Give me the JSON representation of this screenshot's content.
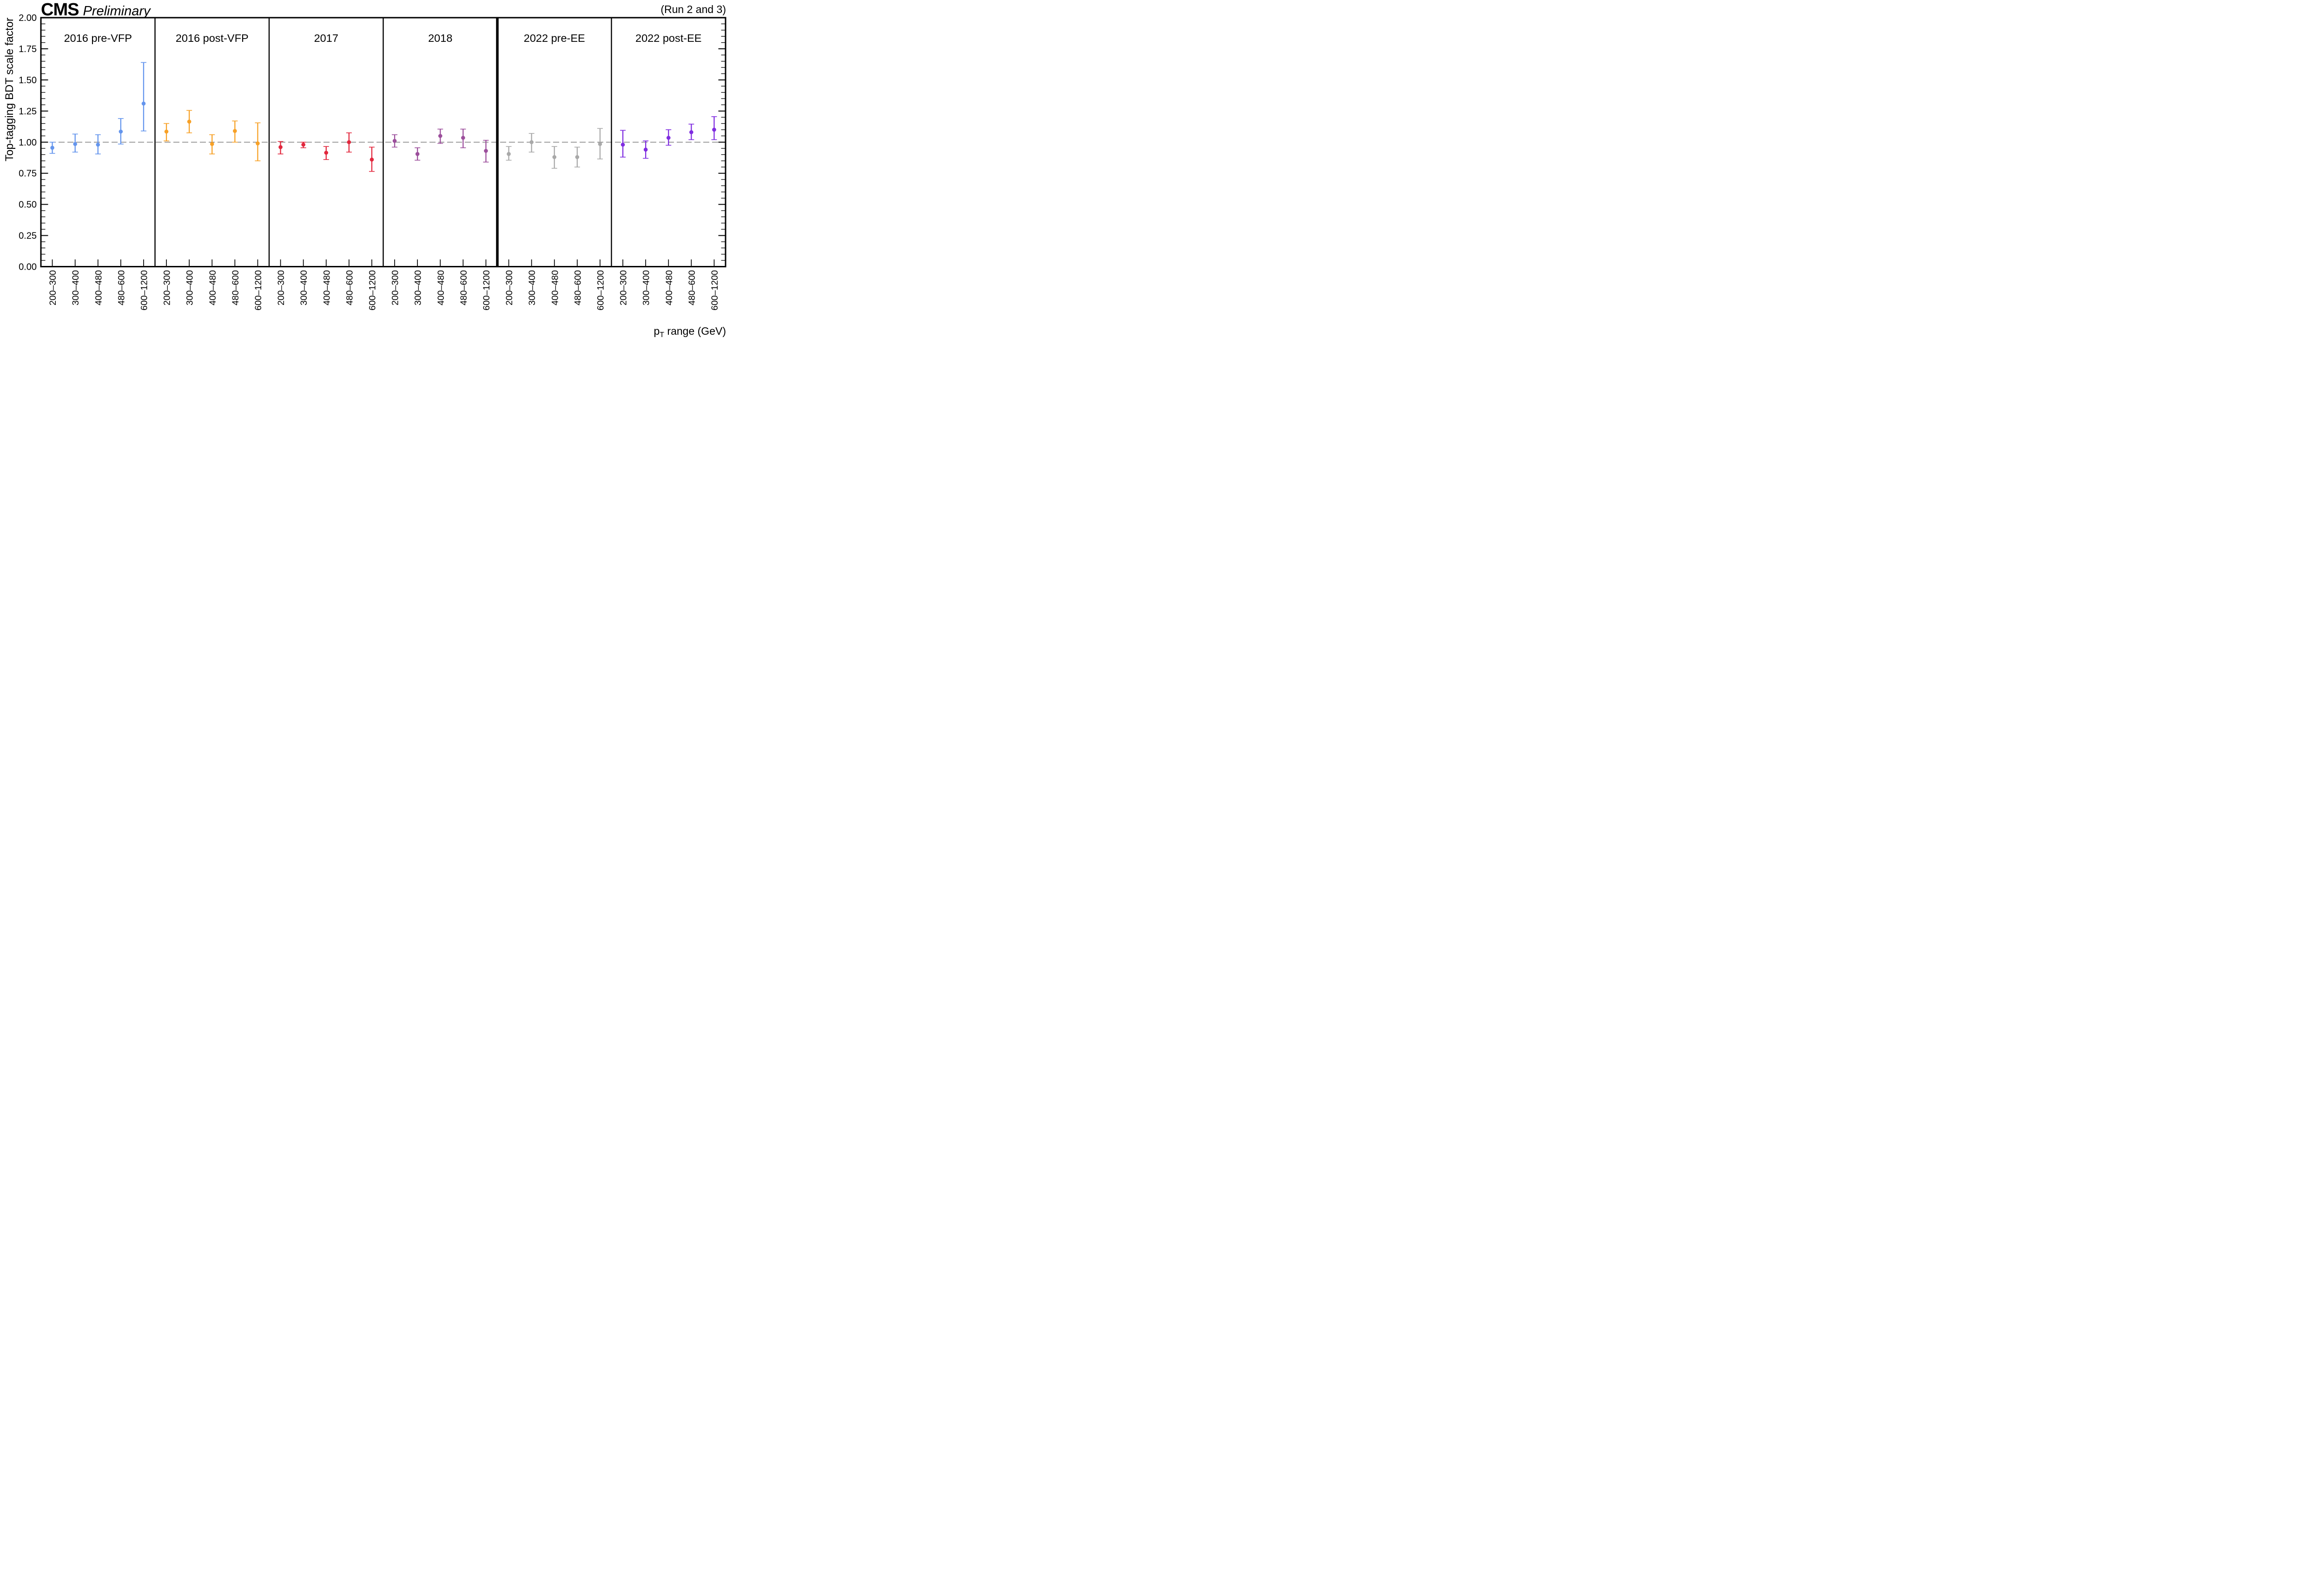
{
  "header": {
    "experiment": "CMS",
    "status": "Preliminary",
    "note": "(Run 2 and 3)"
  },
  "x_axis": {
    "title_prefix": "p",
    "title_sub": "T",
    "title_suffix": " range (GeV)"
  },
  "chart_data": {
    "type": "scatter",
    "title": "Top-tagging BDT scale factor per pT bin for each data-taking era",
    "ylabel": "Top-tagging BDT scale factor",
    "xlabel": "pT range (GeV)",
    "ylim": [
      0.0,
      2.0
    ],
    "y_tick_labels": [
      "0.00",
      "0.25",
      "0.50",
      "0.75",
      "1.00",
      "1.25",
      "1.50",
      "1.75",
      "2.00"
    ],
    "y_major_step": 0.25,
    "y_minor_step": 0.05,
    "grid": false,
    "reference_line_y": 1.0,
    "reference_line_color": "#7f7f7f",
    "categories": [
      "200–300",
      "300–400",
      "400–480",
      "480–600",
      "600–1200"
    ],
    "thick_divider_after_panel": "2018",
    "panels": [
      {
        "title": "2016 pre-VFP",
        "color": "#6495ED",
        "values": [
          0.955,
          0.985,
          0.98,
          1.085,
          1.31
        ],
        "err_up": [
          0.045,
          0.08,
          0.08,
          0.105,
          0.33
        ],
        "err_down": [
          0.045,
          0.065,
          0.075,
          0.1,
          0.22
        ]
      },
      {
        "title": "2016 post-VFP",
        "color": "#F7A127",
        "values": [
          1.085,
          1.165,
          0.985,
          1.09,
          0.99
        ],
        "err_up": [
          0.065,
          0.09,
          0.075,
          0.08,
          0.165
        ],
        "err_down": [
          0.075,
          0.09,
          0.08,
          0.09,
          0.14
        ]
      },
      {
        "title": "2017",
        "color": "#E2273D",
        "values": [
          0.96,
          0.98,
          0.915,
          1.0,
          0.86
        ],
        "err_up": [
          0.045,
          0.02,
          0.05,
          0.075,
          0.1
        ],
        "err_down": [
          0.055,
          0.025,
          0.055,
          0.08,
          0.095
        ]
      },
      {
        "title": "2018",
        "color": "#9C4F9C",
        "values": [
          1.01,
          0.905,
          1.05,
          1.035,
          0.93
        ],
        "err_up": [
          0.05,
          0.05,
          0.055,
          0.07,
          0.085
        ],
        "err_down": [
          0.05,
          0.05,
          0.06,
          0.08,
          0.09
        ]
      },
      {
        "title": "2022 pre-EE",
        "color": "#A9A9A9",
        "values": [
          0.905,
          1.0,
          0.88,
          0.88,
          0.985
        ],
        "err_up": [
          0.06,
          0.07,
          0.085,
          0.08,
          0.125
        ],
        "err_down": [
          0.05,
          0.08,
          0.09,
          0.08,
          0.12
        ]
      },
      {
        "title": "2022 post-EE",
        "color": "#7F2CE0",
        "values": [
          0.98,
          0.94,
          1.035,
          1.08,
          1.1
        ],
        "err_up": [
          0.115,
          0.07,
          0.065,
          0.065,
          0.105
        ],
        "err_down": [
          0.1,
          0.07,
          0.06,
          0.06,
          0.08
        ]
      }
    ]
  }
}
